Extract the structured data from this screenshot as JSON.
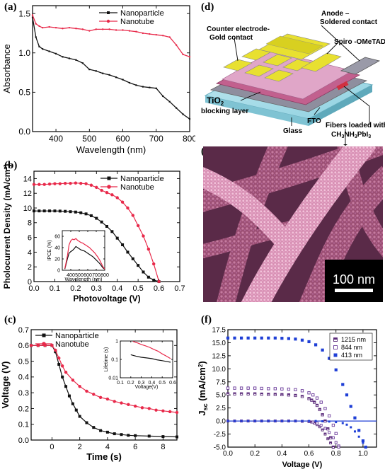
{
  "figure": {
    "panel_labels": [
      "(a)",
      "(b)",
      "(c)",
      "(d)",
      "(e)",
      "(f)"
    ]
  },
  "colors": {
    "nanoparticle": "#111111",
    "nanotube": "#e8294a",
    "blue": "#1f3fd6",
    "violet": "#5a2a7a"
  },
  "chart_data": [
    {
      "id": "a",
      "type": "line",
      "title": "",
      "xlabel": "Wavelength (nm)",
      "ylabel": "Absorbance",
      "xlim": [
        330,
        800
      ],
      "ylim": [
        0,
        1.6
      ],
      "xticks": [
        400,
        500,
        600,
        700,
        800
      ],
      "yticks": [
        0.0,
        0.5,
        1.0,
        1.5
      ],
      "xtick_labels": [
        "400",
        "500",
        "600",
        "700",
        "800"
      ],
      "ytick_labels": [
        "0.0",
        "0.5",
        "1.0",
        "1.5"
      ],
      "legend_position": "top-right",
      "series": [
        {
          "name": "Nanoparticle",
          "color": "#111111",
          "marker": "square",
          "x": [
            330,
            340,
            350,
            360,
            380,
            400,
            420,
            440,
            460,
            480,
            500,
            520,
            540,
            560,
            580,
            600,
            620,
            640,
            660,
            680,
            700,
            720,
            740,
            760,
            780,
            800
          ],
          "y": [
            1.45,
            1.2,
            1.08,
            1.05,
            1.02,
            0.99,
            0.95,
            0.93,
            0.91,
            0.87,
            0.79,
            0.77,
            0.74,
            0.72,
            0.69,
            0.66,
            0.62,
            0.59,
            0.57,
            0.56,
            0.55,
            0.45,
            0.38,
            0.3,
            0.22,
            0.16
          ]
        },
        {
          "name": "Nanotube",
          "color": "#e8294a",
          "marker": "circle",
          "x": [
            330,
            340,
            350,
            360,
            380,
            400,
            420,
            440,
            460,
            480,
            500,
            520,
            540,
            560,
            580,
            600,
            620,
            640,
            660,
            680,
            700,
            720,
            740,
            760,
            780,
            800
          ],
          "y": [
            1.48,
            1.37,
            1.34,
            1.32,
            1.33,
            1.32,
            1.31,
            1.32,
            1.31,
            1.3,
            1.28,
            1.3,
            1.3,
            1.3,
            1.29,
            1.29,
            1.28,
            1.27,
            1.25,
            1.24,
            1.23,
            1.22,
            1.2,
            1.1,
            0.98,
            0.95
          ]
        }
      ]
    },
    {
      "id": "b",
      "type": "line",
      "xlabel": "Photovoltage (V)",
      "ylabel": "Pholocurrent Density (mA/cm²)",
      "xlim": [
        0,
        0.7
      ],
      "ylim": [
        0,
        15
      ],
      "xticks": [
        0.0,
        0.1,
        0.2,
        0.3,
        0.4,
        0.5,
        0.6,
        0.7
      ],
      "yticks": [
        0,
        2,
        4,
        6,
        8,
        10,
        12,
        14
      ],
      "xtick_labels": [
        "0.0",
        "0.1",
        "0.2",
        "0.3",
        "0.4",
        "0.5",
        "0.6",
        "0.7"
      ],
      "ytick_labels": [
        "0",
        "2",
        "4",
        "6",
        "8",
        "10",
        "12",
        "14"
      ],
      "legend_position": "top-right",
      "series": [
        {
          "name": "Nanoparticle",
          "color": "#111111",
          "marker": "square",
          "x": [
            0,
            0.025,
            0.05,
            0.075,
            0.1,
            0.125,
            0.15,
            0.175,
            0.2,
            0.225,
            0.25,
            0.275,
            0.3,
            0.325,
            0.35,
            0.375,
            0.4,
            0.425,
            0.45,
            0.475,
            0.5,
            0.525,
            0.55,
            0.575,
            0.6
          ],
          "y": [
            9.6,
            9.6,
            9.6,
            9.6,
            9.6,
            9.58,
            9.55,
            9.5,
            9.45,
            9.35,
            9.2,
            8.95,
            8.6,
            8.1,
            7.5,
            6.8,
            5.9,
            5.0,
            4.0,
            3.1,
            2.2,
            1.3,
            0.6,
            0.2,
            0.0
          ]
        },
        {
          "name": "Nanotube",
          "color": "#e8294a",
          "marker": "circle",
          "x": [
            0,
            0.025,
            0.05,
            0.075,
            0.1,
            0.125,
            0.15,
            0.175,
            0.2,
            0.225,
            0.25,
            0.275,
            0.3,
            0.325,
            0.35,
            0.375,
            0.4,
            0.425,
            0.45,
            0.475,
            0.5,
            0.525,
            0.55,
            0.575,
            0.6
          ],
          "y": [
            13.2,
            13.2,
            13.2,
            13.25,
            13.3,
            13.3,
            13.35,
            13.35,
            13.4,
            13.35,
            13.3,
            13.1,
            12.8,
            12.4,
            12.1,
            11.8,
            11.4,
            10.8,
            10.0,
            9.0,
            7.6,
            6.2,
            4.4,
            2.4,
            0.0
          ]
        }
      ],
      "inset": {
        "xlabel": "Wavelength (nm)",
        "ylabel": "IPCE (%)",
        "xlim": [
          300,
          800
        ],
        "ylim": [
          0,
          70
        ],
        "xticks": [
          400,
          500,
          600,
          700,
          800
        ],
        "yticks": [
          0,
          20,
          40,
          60
        ],
        "xtick_labels": [
          "400",
          "500",
          "600",
          "700",
          "800"
        ],
        "ytick_labels": [
          "0",
          "20",
          "40",
          "60"
        ],
        "series": [
          {
            "name": "Nanoparticle",
            "color": "#111111",
            "x": [
              330,
              360,
              380,
              400,
              420,
              440,
              460,
              480,
              500,
              520,
              540,
              560,
              580,
              600,
              620,
              640,
              660,
              680,
              700,
              720,
              740,
              760,
              780,
              800
            ],
            "y": [
              2,
              20,
              30,
              33,
              35,
              38,
              42,
              40,
              38,
              36,
              35,
              34,
              32,
              30,
              28,
              26,
              24,
              21,
              18,
              15,
              12,
              8,
              4,
              2
            ]
          },
          {
            "name": "Nanotube",
            "color": "#e8294a",
            "x": [
              330,
              360,
              380,
              400,
              420,
              440,
              460,
              480,
              500,
              520,
              540,
              560,
              580,
              600,
              620,
              640,
              660,
              680,
              700,
              720,
              740,
              760,
              780,
              800
            ],
            "y": [
              3,
              25,
              45,
              52,
              55,
              54,
              56,
              53,
              51,
              49,
              48,
              46,
              44,
              42,
              40,
              37,
              34,
              31,
              27,
              23,
              18,
              12,
              6,
              2
            ]
          }
        ]
      }
    },
    {
      "id": "c",
      "type": "line",
      "xlabel": "Time (s)",
      "ylabel": "Voltage (V)",
      "xlim": [
        -1.5,
        9
      ],
      "ylim": [
        0,
        0.7
      ],
      "xticks": [
        0,
        2,
        4,
        6,
        8
      ],
      "yticks": [
        0.0,
        0.1,
        0.2,
        0.3,
        0.4,
        0.5,
        0.6,
        0.7
      ],
      "xtick_labels": [
        "0",
        "2",
        "4",
        "6",
        "8"
      ],
      "ytick_labels": [
        "0.0",
        "0.1",
        "0.2",
        "0.3",
        "0.4",
        "0.5",
        "0.6",
        "0.7"
      ],
      "legend_position": "top-left",
      "series": [
        {
          "name": "Nanoparticle",
          "color": "#111111",
          "marker": "square",
          "x": [
            -1.5,
            -1,
            -0.5,
            0,
            0.25,
            0.5,
            0.75,
            1,
            1.25,
            1.5,
            1.75,
            2,
            2.5,
            3,
            3.5,
            4,
            4.5,
            5,
            5.5,
            6,
            7,
            8,
            9
          ],
          "y": [
            0.6,
            0.6,
            0.6,
            0.6,
            0.56,
            0.48,
            0.4,
            0.34,
            0.28,
            0.23,
            0.19,
            0.15,
            0.11,
            0.08,
            0.06,
            0.05,
            0.04,
            0.035,
            0.03,
            0.028,
            0.025,
            0.022,
            0.02
          ]
        },
        {
          "name": "Nanotube",
          "color": "#e8294a",
          "marker": "circle",
          "x": [
            -1.5,
            -1,
            -0.5,
            0,
            0.25,
            0.5,
            0.75,
            1,
            1.5,
            2,
            2.5,
            3,
            3.5,
            4,
            4.5,
            5,
            5.5,
            6,
            6.5,
            7,
            7.5,
            8,
            8.5,
            9
          ],
          "y": [
            0.6,
            0.6,
            0.6,
            0.6,
            0.57,
            0.52,
            0.47,
            0.43,
            0.38,
            0.34,
            0.31,
            0.29,
            0.27,
            0.26,
            0.245,
            0.235,
            0.225,
            0.215,
            0.205,
            0.2,
            0.19,
            0.185,
            0.18,
            0.175
          ]
        }
      ],
      "inset": {
        "xlabel": "Voltage(V)",
        "ylabel": "Lifetime (s)",
        "scale": "log-y",
        "xlim": [
          0.1,
          0.6
        ],
        "ylim": [
          0.01,
          1
        ],
        "xticks": [
          0.1,
          0.2,
          0.3,
          0.4,
          0.5,
          0.6
        ],
        "yticks": [
          0.01,
          0.1,
          1
        ],
        "xtick_labels": [
          "0.1",
          "0.2",
          "0.3",
          "0.4",
          "0.5",
          "0.6"
        ],
        "ytick_labels": [
          "0.01",
          "0.1",
          "1"
        ],
        "series": [
          {
            "name": "Nanoparticle",
            "color": "#111111",
            "x": [
              0.2,
              0.25,
              0.3,
              0.35,
              0.4,
              0.45,
              0.5,
              0.55,
              0.58
            ],
            "y": [
              0.18,
              0.15,
              0.13,
              0.12,
              0.11,
              0.095,
              0.085,
              0.075,
              0.07
            ]
          },
          {
            "name": "Nanotube",
            "color": "#e8294a",
            "x": [
              0.22,
              0.26,
              0.3,
              0.34,
              0.38,
              0.42,
              0.46,
              0.5,
              0.54,
              0.58
            ],
            "y": [
              0.95,
              0.8,
              0.65,
              0.55,
              0.45,
              0.35,
              0.28,
              0.2,
              0.15,
              0.11
            ]
          }
        ]
      }
    },
    {
      "id": "f",
      "type": "scatter",
      "xlabel": "Voltage (V)",
      "ylabel": "Jₛₙ (mA/cm²)",
      "ylabel_main": "J",
      "ylabel_sub": "sc",
      "ylabel_unit": " (mA/cm",
      "ylabel_sup": "2",
      "ylabel_end": ")",
      "xlim": [
        0,
        1.1
      ],
      "ylim": [
        -5,
        17.5
      ],
      "xticks": [
        0.0,
        0.2,
        0.4,
        0.6,
        0.8,
        1.0
      ],
      "yticks": [
        -5,
        -2.5,
        0,
        2.5,
        5,
        7.5,
        10,
        12.5,
        15,
        17.5
      ],
      "xtick_labels": [
        "0.0",
        "0.2",
        "0.4",
        "0.6",
        "0.8",
        "1.0"
      ],
      "ytick_labels": [
        "-5.0",
        "-2.5",
        "0.0",
        "2.5",
        "5.0",
        "7.5",
        "10.0",
        "12.5",
        "15.0",
        "17.5"
      ],
      "legend_position": "top-right",
      "series": [
        {
          "name": "1215 nm",
          "color": "#5a2a7a",
          "marker": "half-square",
          "x": [
            0,
            0.05,
            0.1,
            0.15,
            0.2,
            0.25,
            0.3,
            0.35,
            0.4,
            0.45,
            0.5,
            0.55,
            0.6,
            0.62,
            0.64,
            0.66,
            0.68,
            0.7,
            0.72,
            0.74,
            0.76,
            0.78
          ],
          "y": [
            5.2,
            5.2,
            5.2,
            5.2,
            5.2,
            5.15,
            5.1,
            5.1,
            5.05,
            5.0,
            4.9,
            4.7,
            4.3,
            4.0,
            3.6,
            3.0,
            2.2,
            1.2,
            0.0,
            -1.5,
            -3.2,
            -5.0
          ],
          "dark_y": [
            0,
            0,
            0,
            0,
            0,
            0,
            0,
            0,
            0,
            0,
            0,
            -0.05,
            -0.1,
            -0.2,
            -0.4,
            -0.7,
            -1.1,
            -1.7,
            -2.5,
            -3.4,
            -4.2,
            -5.0
          ]
        },
        {
          "name": "844 nm",
          "color": "#6a3a9a",
          "marker": "open-square",
          "x": [
            0,
            0.05,
            0.1,
            0.15,
            0.2,
            0.25,
            0.3,
            0.35,
            0.4,
            0.45,
            0.5,
            0.55,
            0.6,
            0.63,
            0.66,
            0.69,
            0.72,
            0.75,
            0.78,
            0.8,
            0.82
          ],
          "y": [
            6.3,
            6.3,
            6.3,
            6.3,
            6.3,
            6.25,
            6.2,
            6.2,
            6.15,
            6.1,
            6.0,
            5.8,
            5.4,
            5.0,
            4.4,
            3.6,
            2.4,
            1.0,
            -0.8,
            -2.4,
            -4.8
          ],
          "dark_y": [
            0,
            0,
            0,
            0,
            0,
            0,
            0,
            0,
            0,
            0,
            0,
            -0.05,
            -0.1,
            -0.2,
            -0.4,
            -0.8,
            -1.4,
            -2.2,
            -3.2,
            -4.1,
            -5.0
          ]
        },
        {
          "name": "413 nm",
          "color": "#1f3fd6",
          "marker": "filled-square",
          "x": [
            0,
            0.05,
            0.1,
            0.15,
            0.2,
            0.25,
            0.3,
            0.35,
            0.4,
            0.45,
            0.5,
            0.55,
            0.6,
            0.65,
            0.7,
            0.75,
            0.8,
            0.85,
            0.88,
            0.91,
            0.94,
            0.97,
            1.0,
            1.02
          ],
          "y": [
            15.9,
            15.9,
            15.9,
            15.9,
            15.9,
            15.9,
            15.9,
            15.9,
            15.85,
            15.8,
            15.7,
            15.5,
            15.2,
            14.6,
            13.6,
            12.0,
            9.8,
            7.0,
            5.0,
            2.8,
            0.6,
            -1.8,
            -3.8,
            -5.0
          ],
          "dark_y": [
            0,
            0,
            0,
            0,
            0,
            0,
            0,
            0,
            0,
            0,
            0,
            0,
            0,
            0,
            -0.05,
            -0.1,
            -0.2,
            -0.4,
            -0.7,
            -1.2,
            -2.0,
            -3.0,
            -4.2,
            -5.0
          ]
        }
      ]
    }
  ],
  "diagram_d": {
    "labels": {
      "counter_electrode": "Counter electrode-",
      "gold_contact": "Gold contact",
      "anode": "Anode –",
      "soldered": "Soldered contact",
      "spiro": "Spiro -OMeTAD",
      "tio2": "TiO",
      "tio2_sub": "2",
      "blocking": "blocking layer",
      "fto": "FTO",
      "glass": "Glass",
      "fibers": "Fibers loaded with",
      "ch3": "CH",
      "ch3_sub1": "3",
      "nh3": "NH",
      "nh3_sub": "3",
      "pbi": "PbI",
      "pbi_sub": "3"
    }
  },
  "micrograph_e": {
    "scale_bar": "100 nm"
  }
}
